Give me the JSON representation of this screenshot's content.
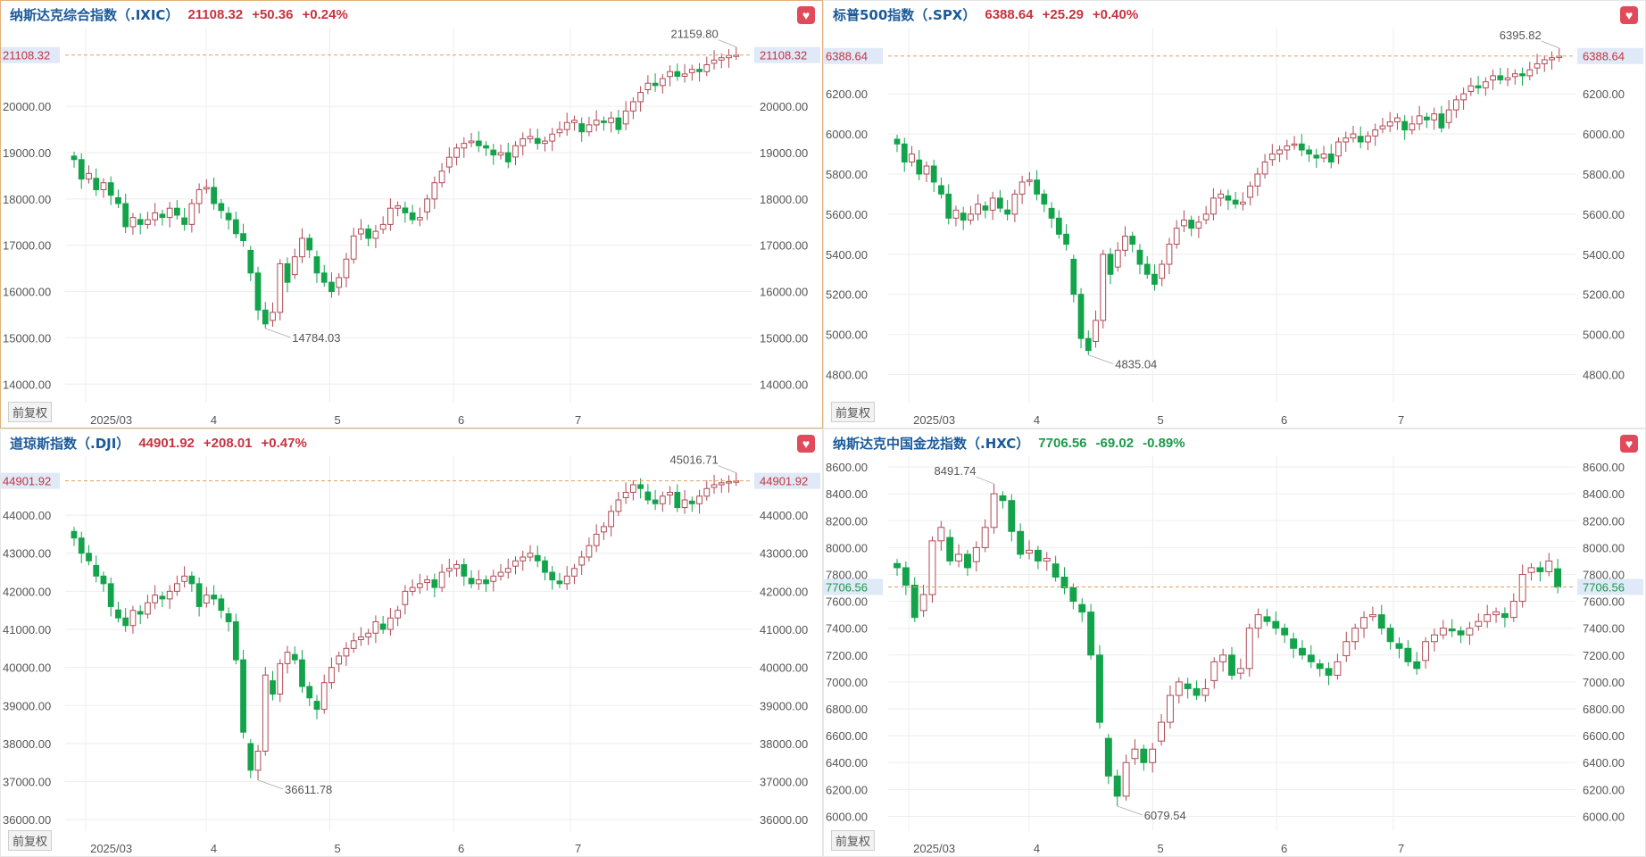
{
  "panels": [
    {
      "id": "ixic",
      "name": "纳斯达克综合指数（.IXIC）",
      "last": "21108.32",
      "change": "+50.36",
      "pct": "+0.24%",
      "direction": "up",
      "last_label": "21108.32",
      "adj_label": "前复权",
      "selected": true
    },
    {
      "id": "spx",
      "name": "标普500指数（.SPX）",
      "last": "6388.64",
      "change": "+25.29",
      "pct": "+0.40%",
      "direction": "up",
      "last_label": "6388.64",
      "adj_label": "前复权",
      "selected": false
    },
    {
      "id": "dji",
      "name": "道琼斯指数（.DJI）",
      "last": "44901.92",
      "change": "+208.01",
      "pct": "+0.47%",
      "direction": "up",
      "last_label": "44901.92",
      "adj_label": "前复权",
      "selected": false
    },
    {
      "id": "hxc",
      "name": "纳斯达克中国金龙指数（.HXC）",
      "last": "7706.56",
      "change": "-69.02",
      "pct": "-0.89%",
      "direction": "down",
      "last_label": "7706.56",
      "adj_label": "前复权",
      "selected": false
    }
  ],
  "colors": {
    "up": "#c8333f",
    "down": "#1a9a48",
    "up_candle": "#b04a55",
    "down_candle": "#13a34b",
    "grid": "#eeeeee",
    "refline": "#e0a060",
    "label_bg": "#dfe9f7",
    "axis_text": "#555555"
  },
  "chart_data": [
    {
      "type": "candlestick",
      "title": "纳斯达克综合指数（.IXIC）",
      "x_ticks": [
        "2025/03",
        "4",
        "5",
        "6",
        "7"
      ],
      "y_ticks": [
        "14000.00",
        "15000.00",
        "16000.00",
        "17000.00",
        "18000.00",
        "19000.00",
        "20000.00"
      ],
      "ylim": [
        13600,
        21700
      ],
      "last": 21108.32,
      "max_label": "21159.80",
      "min_label": "14784.03",
      "closes": [
        18850,
        18430,
        18550,
        18200,
        18350,
        18080,
        17900,
        17400,
        17600,
        17450,
        17550,
        17700,
        17600,
        17800,
        17650,
        17450,
        17900,
        18200,
        18250,
        17900,
        17750,
        17550,
        17250,
        17100,
        16400,
        15600,
        15300,
        15550,
        16600,
        16200,
        16750,
        17150,
        16900,
        16400,
        16200,
        16000,
        16300,
        16700,
        17200,
        17350,
        17150,
        17300,
        17450,
        17800,
        17850,
        17700,
        17550,
        17600,
        18000,
        18350,
        18600,
        18900,
        19100,
        19200,
        19250,
        19150,
        19100,
        18950,
        19000,
        18800,
        19150,
        19300,
        19350,
        19200,
        19250,
        19400,
        19500,
        19650,
        19700,
        19450,
        19600,
        19700,
        19650,
        19750,
        19500,
        19900,
        20100,
        20300,
        20500,
        20450,
        20600,
        20750,
        20650,
        20700,
        20800,
        20750,
        20900,
        21000,
        21050,
        21100,
        21108
      ]
    },
    {
      "type": "candlestick",
      "title": "标普500指数（.SPX）",
      "x_ticks": [
        "2025/03",
        "4",
        "5",
        "6",
        "7"
      ],
      "y_ticks": [
        "4800.00",
        "5000.00",
        "5200.00",
        "5400.00",
        "5600.00",
        "5800.00",
        "6000.00",
        "6200.00"
      ],
      "ylim": [
        4660,
        6530
      ],
      "last": 6388.64,
      "max_label": "6395.82",
      "min_label": "4835.04",
      "closes": [
        5950,
        5860,
        5900,
        5800,
        5840,
        5760,
        5700,
        5580,
        5620,
        5570,
        5600,
        5650,
        5620,
        5680,
        5630,
        5600,
        5700,
        5760,
        5770,
        5700,
        5650,
        5580,
        5500,
        5450,
        5200,
        4980,
        4920,
        5070,
        5400,
        5300,
        5420,
        5490,
        5450,
        5350,
        5300,
        5250,
        5350,
        5450,
        5530,
        5570,
        5530,
        5560,
        5600,
        5680,
        5700,
        5670,
        5650,
        5660,
        5740,
        5800,
        5860,
        5900,
        5920,
        5940,
        5950,
        5920,
        5900,
        5880,
        5900,
        5860,
        5960,
        5980,
        6000,
        5960,
        5990,
        6020,
        6040,
        6060,
        6080,
        6020,
        6050,
        6090,
        6070,
        6100,
        6030,
        6120,
        6170,
        6200,
        6240,
        6230,
        6260,
        6290,
        6270,
        6280,
        6300,
        6290,
        6320,
        6350,
        6370,
        6380,
        6388
      ]
    },
    {
      "type": "candlestick",
      "title": "道琼斯指数（.DJI）",
      "x_ticks": [
        "2025/03",
        "4",
        "5",
        "6",
        "7"
      ],
      "y_ticks": [
        "36000.00",
        "37000.00",
        "38000.00",
        "39000.00",
        "40000.00",
        "41000.00",
        "42000.00",
        "43000.00",
        "44000.00"
      ],
      "ylim": [
        35700,
        45550
      ],
      "last": 44901.92,
      "max_label": "45016.71",
      "min_label": "36611.78",
      "closes": [
        43400,
        43000,
        42800,
        42400,
        42200,
        41600,
        41300,
        41100,
        41500,
        41400,
        41700,
        41900,
        41800,
        42000,
        42200,
        42400,
        42200,
        41600,
        41900,
        41800,
        41500,
        41200,
        40200,
        38300,
        37300,
        37800,
        39800,
        39300,
        40100,
        40400,
        40200,
        39500,
        39200,
        38900,
        39600,
        40000,
        40300,
        40500,
        40700,
        40800,
        40900,
        41200,
        41000,
        41300,
        41500,
        42000,
        42100,
        42200,
        42300,
        42100,
        42500,
        42600,
        42700,
        42400,
        42200,
        42300,
        42200,
        42400,
        42500,
        42600,
        42800,
        42900,
        43000,
        42800,
        42500,
        42300,
        42200,
        42400,
        42600,
        42900,
        43200,
        43500,
        43700,
        44100,
        44400,
        44600,
        44800,
        44700,
        44400,
        44300,
        44500,
        44600,
        44200,
        44400,
        44300,
        44500,
        44700,
        44800,
        44850,
        44880,
        44901
      ]
    },
    {
      "type": "candlestick",
      "title": "纳斯达克中国金龙指数（.HXC）",
      "x_ticks": [
        "2025/03",
        "4",
        "5",
        "6",
        "7"
      ],
      "y_ticks": [
        "6000.00",
        "6200.00",
        "6400.00",
        "6600.00",
        "6800.00",
        "7000.00",
        "7200.00",
        "7400.00",
        "7600.00",
        "7800.00",
        "8000.00",
        "8200.00",
        "8400.00",
        "8600.00"
      ],
      "ylim": [
        5890,
        8680
      ],
      "last": 7706.56,
      "max_label": "8491.74",
      "min_label": "6079.54",
      "closes": [
        7850,
        7720,
        7480,
        7650,
        8050,
        8150,
        7900,
        7950,
        7850,
        8000,
        8150,
        8400,
        8350,
        8120,
        7950,
        7980,
        7900,
        7920,
        7780,
        7700,
        7600,
        7520,
        7200,
        6700,
        6300,
        6150,
        6400,
        6500,
        6400,
        6500,
        6700,
        6900,
        7000,
        6950,
        6900,
        6950,
        7150,
        7200,
        7050,
        7100,
        7400,
        7500,
        7450,
        7400,
        7350,
        7250,
        7200,
        7150,
        7100,
        7050,
        7150,
        7300,
        7400,
        7480,
        7500,
        7400,
        7300,
        7250,
        7150,
        7100,
        7300,
        7350,
        7400,
        7380,
        7350,
        7400,
        7450,
        7500,
        7520,
        7480,
        7600,
        7800,
        7850,
        7820,
        7900,
        7706
      ]
    }
  ]
}
